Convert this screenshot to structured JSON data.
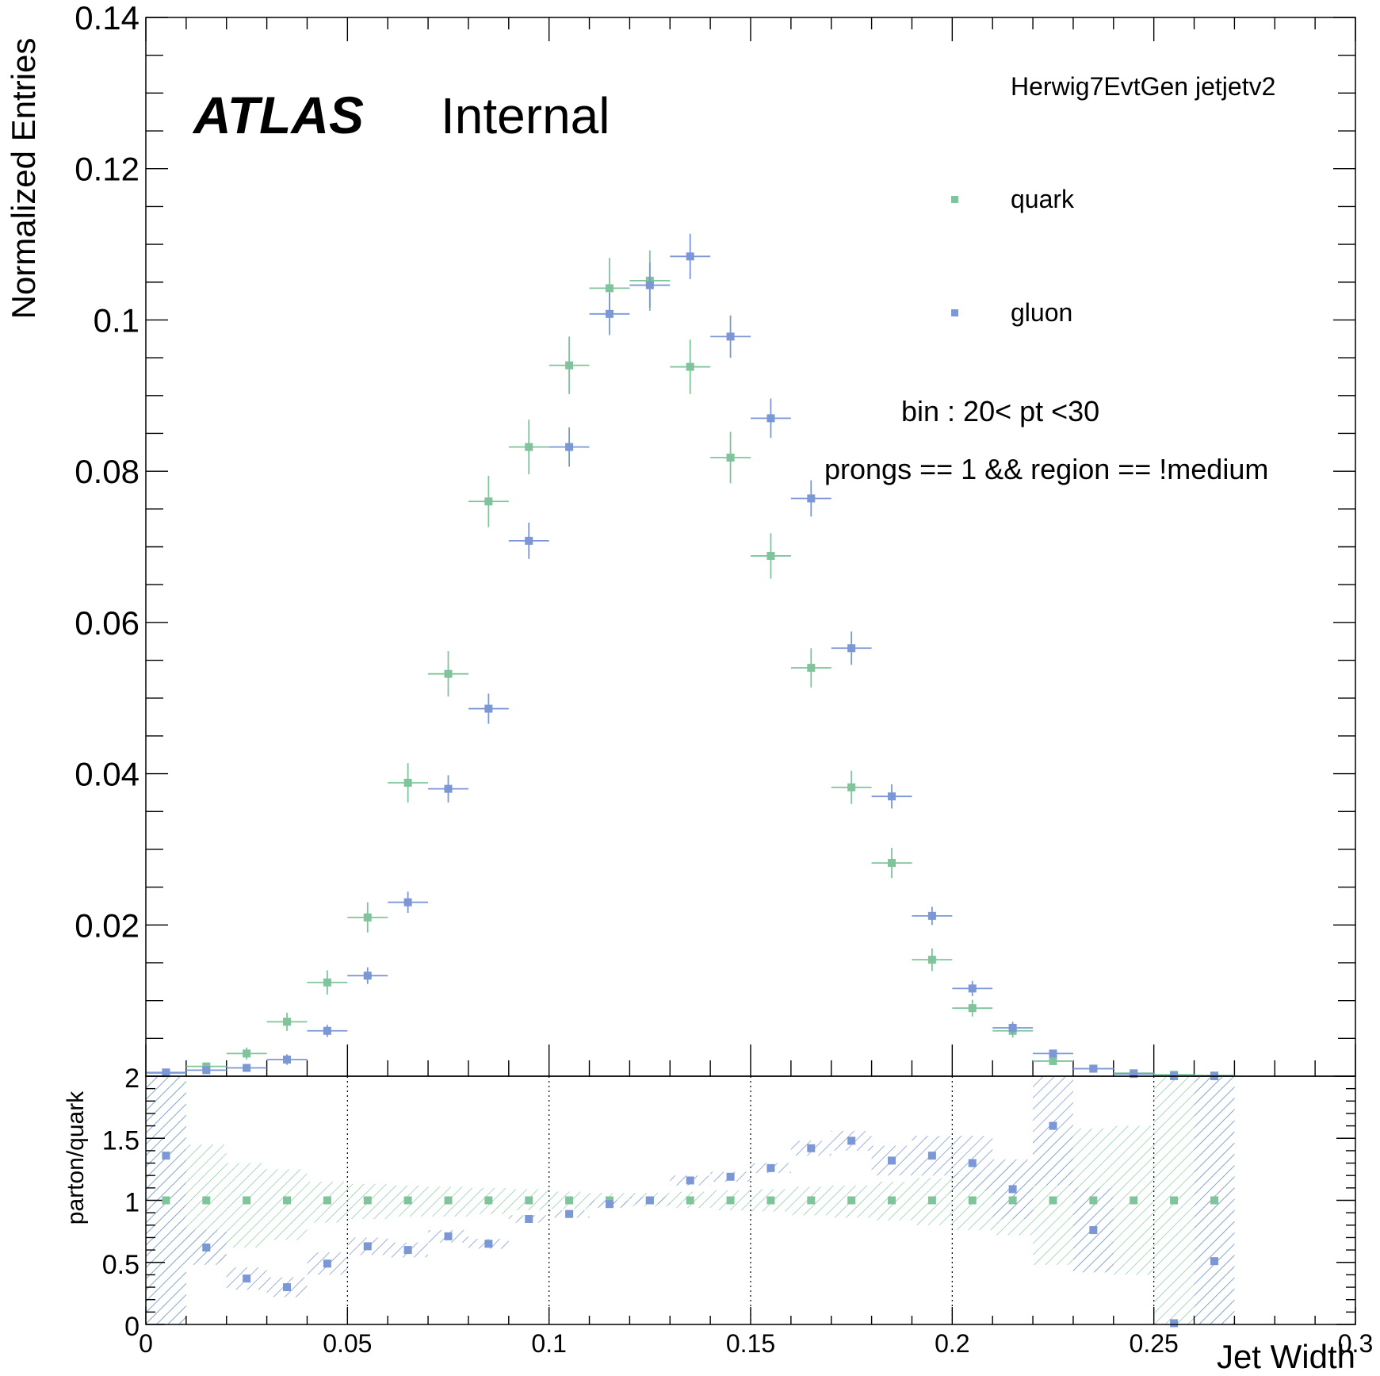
{
  "chart_data": [
    {
      "type": "scatter",
      "panel": "main",
      "ylabel": "Normalized Entries",
      "ylim": [
        0,
        0.14
      ],
      "xlim": [
        0,
        0.3
      ],
      "yticks": [
        "0.02",
        "0.04",
        "0.06",
        "0.08",
        "0.1",
        "0.12",
        "0.14"
      ],
      "annotations": {
        "atlas": "ATLAS",
        "internal": "Internal",
        "generator": "Herwig7EvtGen jetjetv2",
        "bin": "bin : 20< pt <30",
        "selection": "prongs == 1 && region == !medium"
      },
      "bin_half_width": 0.005,
      "series": [
        {
          "name": "quark",
          "color": "#7fc49b",
          "x": [
            0.005,
            0.015,
            0.025,
            0.035,
            0.045,
            0.055,
            0.065,
            0.075,
            0.085,
            0.095,
            0.105,
            0.115,
            0.125,
            0.135,
            0.145,
            0.155,
            0.165,
            0.175,
            0.185,
            0.195,
            0.205,
            0.215,
            0.225,
            0.235,
            0.245,
            0.255,
            0.265
          ],
          "y": [
            0.0004,
            0.0013,
            0.003,
            0.0072,
            0.0124,
            0.021,
            0.0388,
            0.0532,
            0.076,
            0.0832,
            0.094,
            0.1042,
            0.1052,
            0.0938,
            0.0818,
            0.0688,
            0.054,
            0.0382,
            0.0282,
            0.0154,
            0.009,
            0.006,
            0.002,
            0.001,
            0.0004,
            0.0002,
            0.0001
          ],
          "yerr": [
            0.0003,
            0.0005,
            0.0008,
            0.0012,
            0.0016,
            0.002,
            0.0026,
            0.003,
            0.0034,
            0.0036,
            0.0038,
            0.004,
            0.004,
            0.0036,
            0.0034,
            0.003,
            0.0026,
            0.0022,
            0.002,
            0.0015,
            0.0011,
            0.0009,
            0.0005,
            0.0004,
            0.0003,
            0.0002,
            0.0001
          ]
        },
        {
          "name": "gluon",
          "color": "#7b97d6",
          "x": [
            0.005,
            0.015,
            0.025,
            0.035,
            0.045,
            0.055,
            0.065,
            0.075,
            0.085,
            0.095,
            0.105,
            0.115,
            0.125,
            0.135,
            0.145,
            0.155,
            0.165,
            0.175,
            0.185,
            0.195,
            0.205,
            0.215,
            0.225,
            0.235,
            0.245,
            0.255,
            0.265
          ],
          "y": [
            0.0005,
            0.0008,
            0.0011,
            0.0022,
            0.006,
            0.0133,
            0.023,
            0.038,
            0.0486,
            0.0708,
            0.0832,
            0.1008,
            0.1046,
            0.1084,
            0.0978,
            0.087,
            0.0764,
            0.0566,
            0.037,
            0.0212,
            0.0116,
            0.0064,
            0.003,
            0.001,
            0.0003,
            0.0,
            0.0
          ],
          "yerr": [
            0.0003,
            0.0004,
            0.0005,
            0.0007,
            0.0008,
            0.0011,
            0.0014,
            0.0018,
            0.002,
            0.0024,
            0.0026,
            0.0028,
            0.003,
            0.003,
            0.0028,
            0.0026,
            0.0024,
            0.0022,
            0.0016,
            0.0012,
            0.001,
            0.0008,
            0.0005,
            0.0003,
            0.0002,
            0.0,
            0.0
          ]
        }
      ]
    },
    {
      "type": "scatter",
      "panel": "ratio",
      "xlabel": "Jet Width",
      "ylabel": "parton/quark",
      "xlim": [
        0,
        0.3
      ],
      "ylim": [
        0,
        2
      ],
      "xticks": [
        "0",
        "0.05",
        "0.1",
        "0.15",
        "0.2",
        "0.25",
        "0.3"
      ],
      "yticks": [
        "0",
        "0.5",
        "1",
        "1.5",
        "2"
      ],
      "grid_x": [
        0.05,
        0.1,
        0.15,
        0.2,
        0.25
      ],
      "series": [
        {
          "name": "quark",
          "color": "#7fc49b",
          "x": [
            0.005,
            0.015,
            0.025,
            0.035,
            0.045,
            0.055,
            0.065,
            0.075,
            0.085,
            0.095,
            0.105,
            0.115,
            0.125,
            0.135,
            0.145,
            0.155,
            0.165,
            0.175,
            0.185,
            0.195,
            0.205,
            0.215,
            0.225,
            0.235,
            0.245,
            0.255,
            0.265
          ],
          "y": [
            1,
            1,
            1,
            1,
            1,
            1,
            1,
            1,
            1,
            1,
            1,
            1,
            1,
            1,
            1,
            1,
            1,
            1,
            1,
            1,
            1,
            1,
            1,
            1,
            1,
            1,
            1
          ],
          "band_lo": [
            0,
            0.5,
            0.62,
            0.68,
            0.82,
            0.85,
            0.87,
            0.87,
            0.89,
            0.92,
            0.93,
            0.95,
            0.95,
            0.94,
            0.92,
            0.91,
            0.88,
            0.86,
            0.84,
            0.8,
            0.76,
            0.72,
            0.48,
            0.42,
            0.4,
            0,
            0
          ],
          "band_hi": [
            2,
            1.45,
            1.3,
            1.25,
            1.15,
            1.13,
            1.12,
            1.11,
            1.1,
            1.09,
            1.07,
            1.06,
            1.06,
            1.07,
            1.08,
            1.09,
            1.11,
            1.12,
            1.15,
            1.18,
            1.22,
            1.3,
            1.52,
            1.58,
            1.6,
            2,
            2
          ]
        },
        {
          "name": "gluon",
          "color": "#7b97d6",
          "x": [
            0.005,
            0.015,
            0.025,
            0.035,
            0.045,
            0.055,
            0.065,
            0.075,
            0.085,
            0.095,
            0.105,
            0.115,
            0.125,
            0.135,
            0.145,
            0.155,
            0.165,
            0.175,
            0.185,
            0.195,
            0.205,
            0.215,
            0.225,
            0.235,
            0.245,
            0.255,
            0.265
          ],
          "y": [
            1.36,
            0.62,
            0.37,
            0.3,
            0.49,
            0.63,
            0.6,
            0.71,
            0.65,
            0.85,
            0.89,
            0.97,
            1.0,
            1.16,
            1.19,
            1.26,
            1.42,
            1.48,
            1.32,
            1.36,
            1.3,
            1.09,
            1.6,
            0.76,
            null,
            0.01,
            0.51
          ],
          "band_lo": [
            0,
            0.48,
            0.28,
            0.22,
            0.4,
            0.56,
            0.54,
            0.66,
            0.61,
            0.82,
            0.86,
            0.94,
            0.97,
            1.12,
            1.15,
            1.22,
            1.36,
            1.4,
            1.2,
            1.2,
            1.08,
            0.85,
            1.12,
            0.42,
            null,
            0,
            0
          ],
          "band_hi": [
            2,
            0.76,
            0.46,
            0.38,
            0.58,
            0.7,
            0.66,
            0.76,
            0.69,
            0.88,
            0.92,
            1.0,
            1.03,
            1.2,
            1.23,
            1.3,
            1.48,
            1.56,
            1.44,
            1.52,
            1.52,
            1.33,
            2,
            1.1,
            null,
            0,
            2
          ]
        }
      ]
    }
  ]
}
